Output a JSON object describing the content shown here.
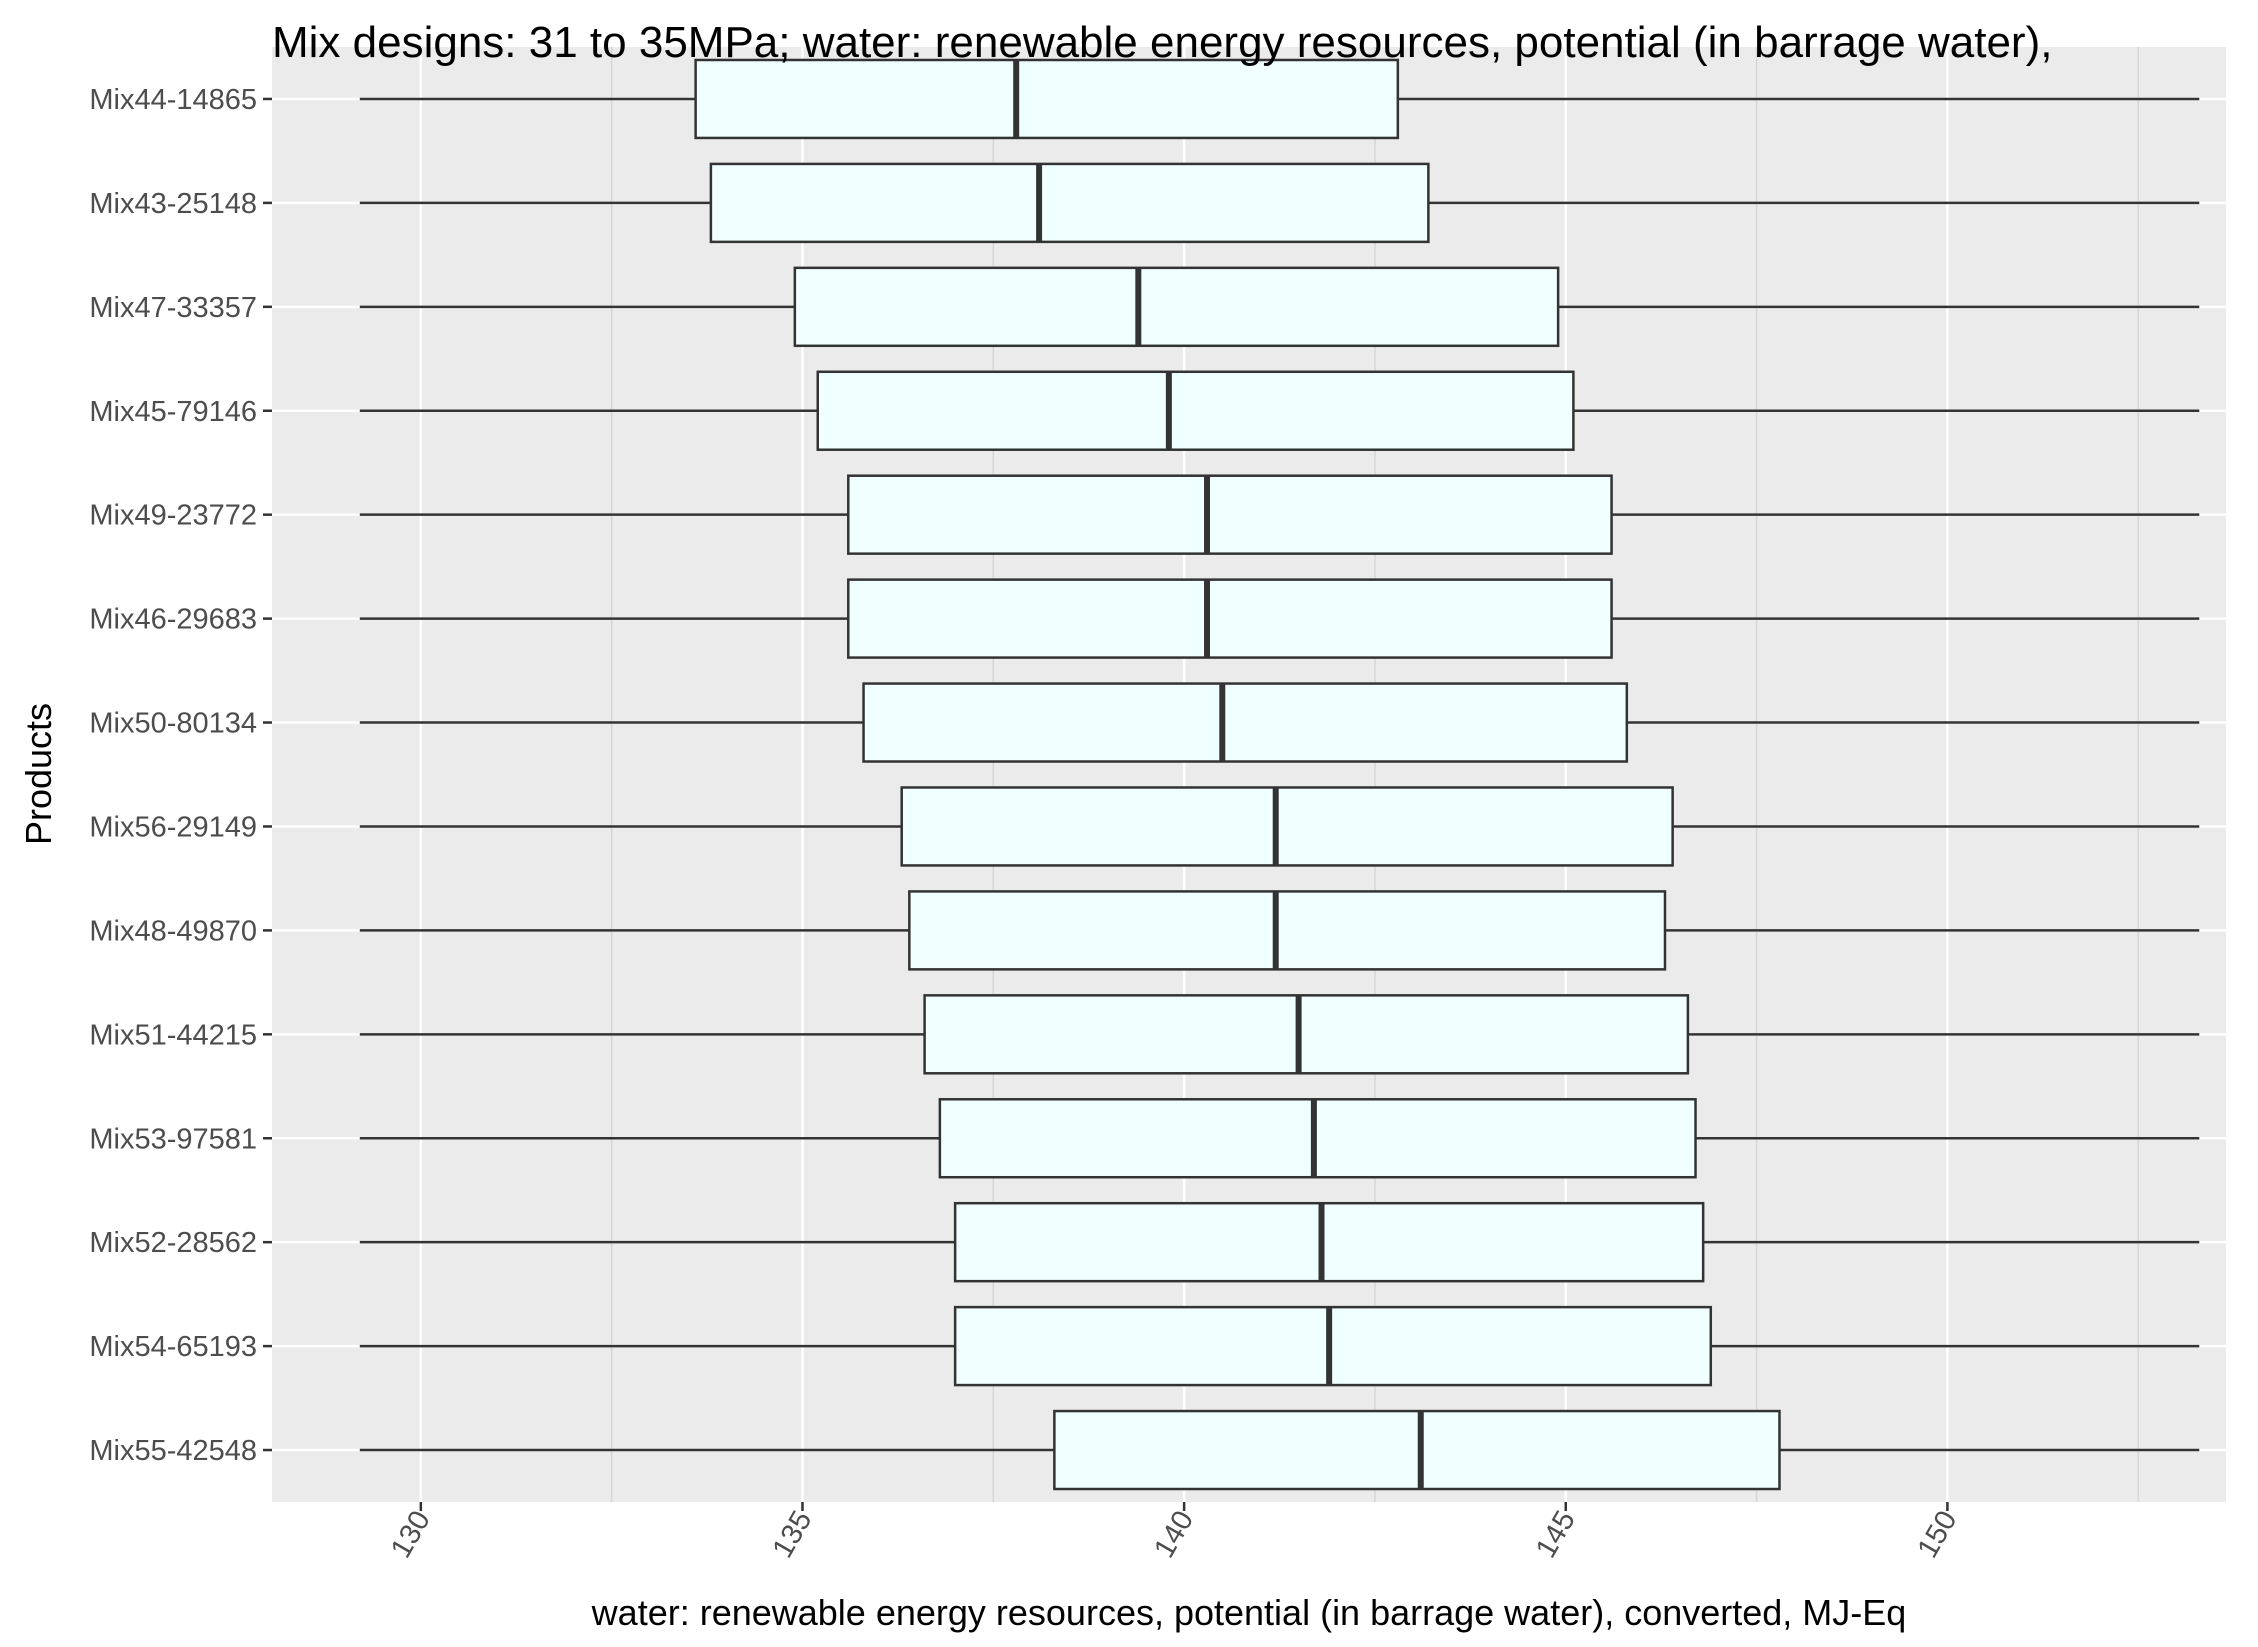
{
  "chart_data": {
    "type": "boxplot",
    "orientation": "horizontal",
    "title": "Mix designs: 31 to 35MPa; water: renewable energy resources, potential (in barrage water),",
    "xlabel": "water: renewable energy resources, potential (in barrage water), converted, MJ-Eq",
    "ylabel": "Products",
    "xlim": [
      128.05,
      153.65
    ],
    "xticks": [
      130,
      135,
      140,
      145,
      150
    ],
    "grid": true,
    "legend": "none",
    "colors": {
      "panel_background": "#ebebeb",
      "grid_major": "#ffffff",
      "box_fill": "#f0ffff",
      "box_stroke": "#333333",
      "whisker": "#333333",
      "median": "#333333"
    },
    "categories": [
      "Mix44-14865",
      "Mix43-25148",
      "Mix47-33357",
      "Mix45-79146",
      "Mix49-23772",
      "Mix46-29683",
      "Mix50-80134",
      "Mix56-29149",
      "Mix48-49870",
      "Mix51-44215",
      "Mix53-97581",
      "Mix52-28562",
      "Mix54-65193",
      "Mix55-42548"
    ],
    "boxes": [
      {
        "category": "Mix44-14865",
        "min": 129.2,
        "q1": 133.6,
        "median": 137.8,
        "q3": 142.8,
        "max": 153.3
      },
      {
        "category": "Mix43-25148",
        "min": 129.2,
        "q1": 133.8,
        "median": 138.1,
        "q3": 143.2,
        "max": 153.3
      },
      {
        "category": "Mix47-33357",
        "min": 129.2,
        "q1": 134.9,
        "median": 139.4,
        "q3": 144.9,
        "max": 153.3
      },
      {
        "category": "Mix45-79146",
        "min": 129.2,
        "q1": 135.2,
        "median": 139.8,
        "q3": 145.1,
        "max": 153.3
      },
      {
        "category": "Mix49-23772",
        "min": 129.2,
        "q1": 135.6,
        "median": 140.3,
        "q3": 145.6,
        "max": 153.3
      },
      {
        "category": "Mix46-29683",
        "min": 129.2,
        "q1": 135.6,
        "median": 140.3,
        "q3": 145.6,
        "max": 153.3
      },
      {
        "category": "Mix50-80134",
        "min": 129.2,
        "q1": 135.8,
        "median": 140.5,
        "q3": 145.8,
        "max": 153.3
      },
      {
        "category": "Mix56-29149",
        "min": 129.2,
        "q1": 136.3,
        "median": 141.2,
        "q3": 146.4,
        "max": 153.3
      },
      {
        "category": "Mix48-49870",
        "min": 129.2,
        "q1": 136.4,
        "median": 141.2,
        "q3": 146.3,
        "max": 153.3
      },
      {
        "category": "Mix51-44215",
        "min": 129.2,
        "q1": 136.6,
        "median": 141.5,
        "q3": 146.6,
        "max": 153.3
      },
      {
        "category": "Mix53-97581",
        "min": 129.2,
        "q1": 136.8,
        "median": 141.7,
        "q3": 146.7,
        "max": 153.3
      },
      {
        "category": "Mix52-28562",
        "min": 129.2,
        "q1": 137.0,
        "median": 141.8,
        "q3": 146.8,
        "max": 153.3
      },
      {
        "category": "Mix54-65193",
        "min": 129.2,
        "q1": 137.0,
        "median": 141.9,
        "q3": 146.9,
        "max": 153.3
      },
      {
        "category": "Mix55-42548",
        "min": 129.2,
        "q1": 138.3,
        "median": 143.1,
        "q3": 147.8,
        "max": 153.3
      }
    ]
  }
}
